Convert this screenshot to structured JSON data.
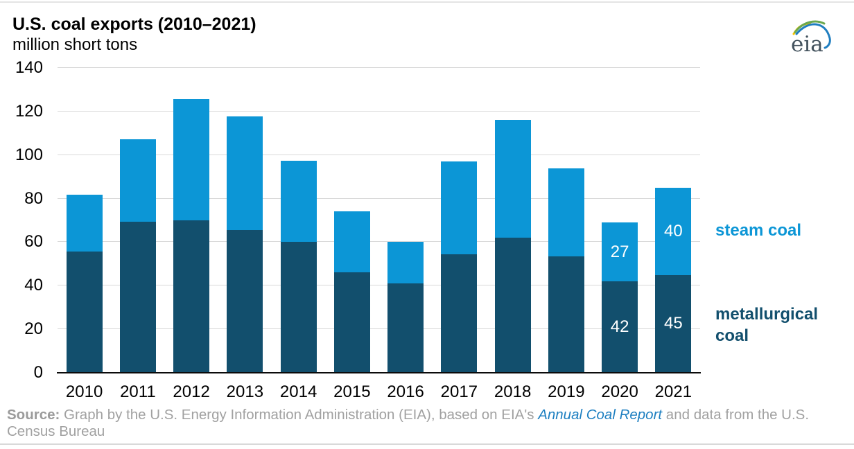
{
  "header": {
    "title": "U.S. coal exports (2010–2021)",
    "units": "million short tons"
  },
  "logo": {
    "text": "eia"
  },
  "legend": {
    "steam_label": "steam coal",
    "met_label": "metallurgical coal"
  },
  "source": {
    "prefix": "Source:",
    "before_link": " Graph by the U.S. Energy Information Administration (EIA), based on EIA's ",
    "link": "Annual Coal Report",
    "after_link": " and data from the U.S. Census Bureau"
  },
  "colors": {
    "steam": "#0c96d6",
    "met": "#124f6d",
    "grid": "#d9d9d9",
    "axis": "#0b0b0b",
    "legend_steam_text": "#0c96d6",
    "legend_met_text": "#124f6d",
    "source_gray": "#a1a1a1",
    "link_blue": "#1d7fc1",
    "logo_yellow": "#f4c400",
    "logo_green": "#6ba84f",
    "logo_blue": "#1f7ec0"
  },
  "chart_data": {
    "type": "bar",
    "stacked": true,
    "title": "U.S. coal exports (2010–2021)",
    "ylabel": "million short tons",
    "xlabel": "",
    "ylim": [
      0,
      140
    ],
    "ytick_interval": 20,
    "grid": true,
    "legend_position": "right",
    "categories": [
      "2010",
      "2011",
      "2012",
      "2013",
      "2014",
      "2015",
      "2016",
      "2017",
      "2018",
      "2019",
      "2020",
      "2021"
    ],
    "series": [
      {
        "name": "metallurgical coal",
        "color_key": "met",
        "values": [
          55.7,
          69.5,
          70.0,
          65.7,
          60.3,
          46.0,
          40.9,
          54.3,
          62.2,
          53.4,
          42,
          45
        ],
        "segment_labels": [
          null,
          null,
          null,
          null,
          null,
          null,
          null,
          null,
          null,
          null,
          "42",
          "45"
        ]
      },
      {
        "name": "steam coal",
        "color_key": "steam",
        "values": [
          26.0,
          37.8,
          55.7,
          52.0,
          37.0,
          28.0,
          19.4,
          42.7,
          54.0,
          40.4,
          27,
          40
        ],
        "segment_labels": [
          null,
          null,
          null,
          null,
          null,
          null,
          null,
          null,
          null,
          null,
          "27",
          "40"
        ]
      }
    ]
  }
}
